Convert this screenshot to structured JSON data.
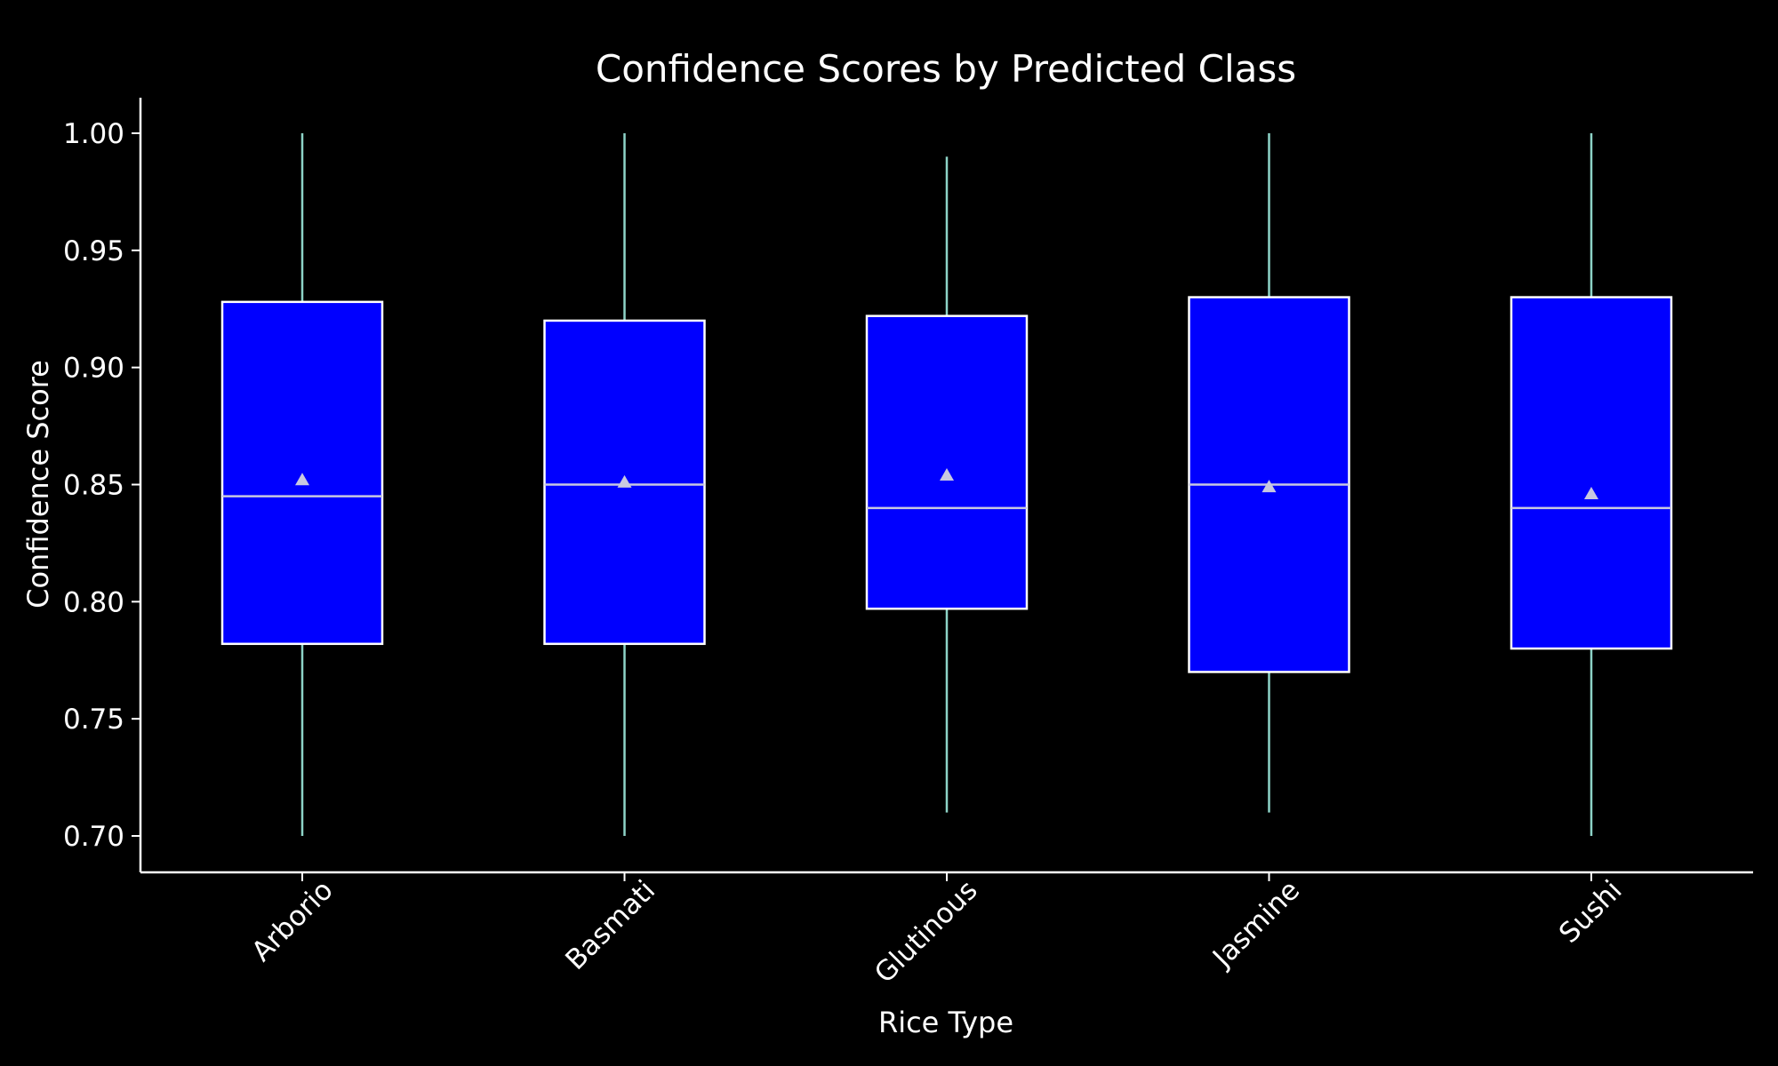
{
  "chart_data": {
    "type": "box",
    "title": "Confidence Scores by Predicted Class",
    "xlabel": "Rice Type",
    "ylabel": "Confidence Score",
    "ylim": [
      0.685,
      1.015
    ],
    "yticks": [
      "0.70",
      "0.75",
      "0.80",
      "0.85",
      "0.90",
      "0.95",
      "1.00"
    ],
    "categories": [
      "Arborio",
      "Basmati",
      "Glutinous",
      "Jasmine",
      "Sushi"
    ],
    "boxes": [
      {
        "category": "Arborio",
        "min": 0.7,
        "q1": 0.782,
        "median": 0.845,
        "q3": 0.928,
        "max": 1.0,
        "mean": 0.852
      },
      {
        "category": "Basmati",
        "min": 0.7,
        "q1": 0.782,
        "median": 0.85,
        "q3": 0.92,
        "max": 1.0,
        "mean": 0.851
      },
      {
        "category": "Glutinous",
        "min": 0.71,
        "q1": 0.797,
        "median": 0.84,
        "q3": 0.922,
        "max": 0.99,
        "mean": 0.854
      },
      {
        "category": "Jasmine",
        "min": 0.71,
        "q1": 0.77,
        "median": 0.85,
        "q3": 0.93,
        "max": 1.0,
        "mean": 0.849
      },
      {
        "category": "Sushi",
        "min": 0.7,
        "q1": 0.78,
        "median": 0.84,
        "q3": 0.93,
        "max": 1.0,
        "mean": 0.846
      }
    ],
    "grid": false,
    "colors": {
      "background": "#000000",
      "box_fill": "#0000ff",
      "box_edge": "#ffffff",
      "whisker": "#8dd3c7",
      "median": "#c8c8e0",
      "mean_marker": "#c8c8e0",
      "axis": "#ffffff",
      "text": "#ffffff"
    }
  }
}
